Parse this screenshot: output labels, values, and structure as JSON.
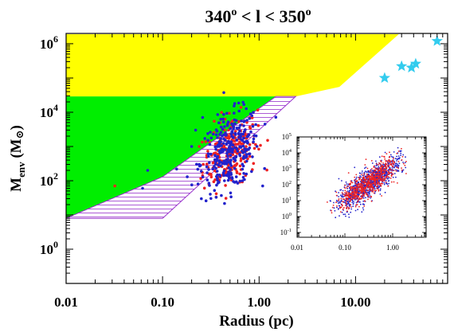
{
  "chart_data": [
    {
      "type": "scatter",
      "title": "340° < l < 350°",
      "title_parts": {
        "pre": "340",
        "sup1": "o",
        "mid": " < l < 350",
        "sup2": "o"
      },
      "xlabel": "Radius (pc)",
      "ylabel_parts": {
        "main": "M",
        "sub": "env",
        "unit": " (M",
        "sun": "⊙",
        "close": ")"
      },
      "xscale": "log",
      "yscale": "log",
      "xlim": [
        0.01,
        90
      ],
      "ylim": [
        0.1,
        2000000
      ],
      "x_ticks": [
        {
          "value": 0.01,
          "label": "0.01"
        },
        {
          "value": 0.1,
          "label": "0.10"
        },
        {
          "value": 1,
          "label": "1.00"
        },
        {
          "value": 10,
          "label": "10.00"
        }
      ],
      "y_ticks": [
        {
          "value": 1,
          "base": "10",
          "exp": "0"
        },
        {
          "value": 100,
          "base": "10",
          "exp": "2"
        },
        {
          "value": 10000,
          "base": "10",
          "exp": "4"
        },
        {
          "value": 1000000,
          "base": "10",
          "exp": "6"
        }
      ],
      "regions": [
        {
          "name": "yellow-region",
          "color": "#ffff00",
          "polygon": [
            [
              0.01,
              1900000
            ],
            [
              28,
              1900000
            ],
            [
              6.8,
              55000
            ],
            [
              2.4,
              29000
            ],
            [
              0.01,
              29000
            ]
          ]
        },
        {
          "name": "green-region",
          "color": "#00ee00",
          "polygon": [
            [
              0.01,
              29000
            ],
            [
              1.5,
              29000
            ],
            [
              0.1,
              130
            ],
            [
              0.01,
              8
            ]
          ]
        },
        {
          "name": "hatched-region",
          "color": "#9933cc",
          "polygon": [
            [
              0.01,
              8
            ],
            [
              0.1,
              130
            ],
            [
              1.5,
              29000
            ],
            [
              2.4,
              29000
            ],
            [
              0.1,
              8
            ]
          ]
        }
      ],
      "stars": {
        "color": "#33ccee",
        "points": [
          [
            20,
            100000
          ],
          [
            30,
            220000
          ],
          [
            38,
            200000
          ],
          [
            42,
            260000
          ],
          [
            70,
            1200000
          ]
        ]
      },
      "series_colors": {
        "blue": "#2222cc",
        "red": "#ee2222"
      },
      "clusters": [
        {
          "color": "red",
          "n": 240,
          "mean_logx": -0.3,
          "mean_logy": 2.85,
          "sd_logx": 0.14,
          "sd_logy": 0.5,
          "xmin": 0.2,
          "xmax": 1.8,
          "ymin": 15,
          "ymax": 40000
        },
        {
          "color": "blue",
          "n": 300,
          "mean_logx": -0.3,
          "mean_logy": 2.85,
          "sd_logx": 0.15,
          "sd_logy": 0.55,
          "xmin": 0.2,
          "xmax": 1.8,
          "ymin": 15,
          "ymax": 40000
        }
      ],
      "outliers": [
        {
          "x": 0.032,
          "y": 70,
          "color": "red"
        },
        {
          "x": 0.062,
          "y": 60,
          "color": "blue"
        },
        {
          "x": 0.07,
          "y": 200,
          "color": "blue"
        },
        {
          "x": 0.14,
          "y": 220,
          "color": "blue"
        },
        {
          "x": 0.18,
          "y": 130,
          "color": "blue"
        },
        {
          "x": 0.2,
          "y": 1000,
          "color": "blue"
        },
        {
          "x": 0.22,
          "y": 3000,
          "color": "blue"
        },
        {
          "x": 0.26,
          "y": 7000,
          "color": "blue"
        },
        {
          "x": 0.24,
          "y": 300,
          "color": "blue"
        }
      ]
    },
    {
      "type": "scatter",
      "inset": true,
      "xscale": "log",
      "yscale": "log",
      "xlim": [
        0.01,
        5
      ],
      "ylim": [
        0.05,
        100000
      ],
      "x_ticks": [
        {
          "value": 0.01,
          "label": "0.01"
        },
        {
          "value": 0.1,
          "label": "0.10"
        },
        {
          "value": 1,
          "label": "1.00"
        }
      ],
      "y_ticks": [
        {
          "value": 0.1,
          "base": "10",
          "exp": "-1"
        },
        {
          "value": 1,
          "base": "10",
          "exp": "0"
        },
        {
          "value": 10,
          "base": "10",
          "exp": "1"
        },
        {
          "value": 100,
          "base": "10",
          "exp": "2"
        },
        {
          "value": 1000,
          "base": "10",
          "exp": "3"
        },
        {
          "value": 10000,
          "base": "10",
          "exp": "4"
        },
        {
          "value": 100000,
          "base": "10",
          "exp": "5"
        }
      ],
      "relation": {
        "slope": 2.0,
        "intercept_log": 3.1,
        "logx_range": [
          -1.45,
          0.45
        ],
        "scatter_sd": 0.45
      },
      "clusters": [
        {
          "color": "blue",
          "n": 900
        },
        {
          "color": "red",
          "n": 650
        }
      ]
    }
  ]
}
